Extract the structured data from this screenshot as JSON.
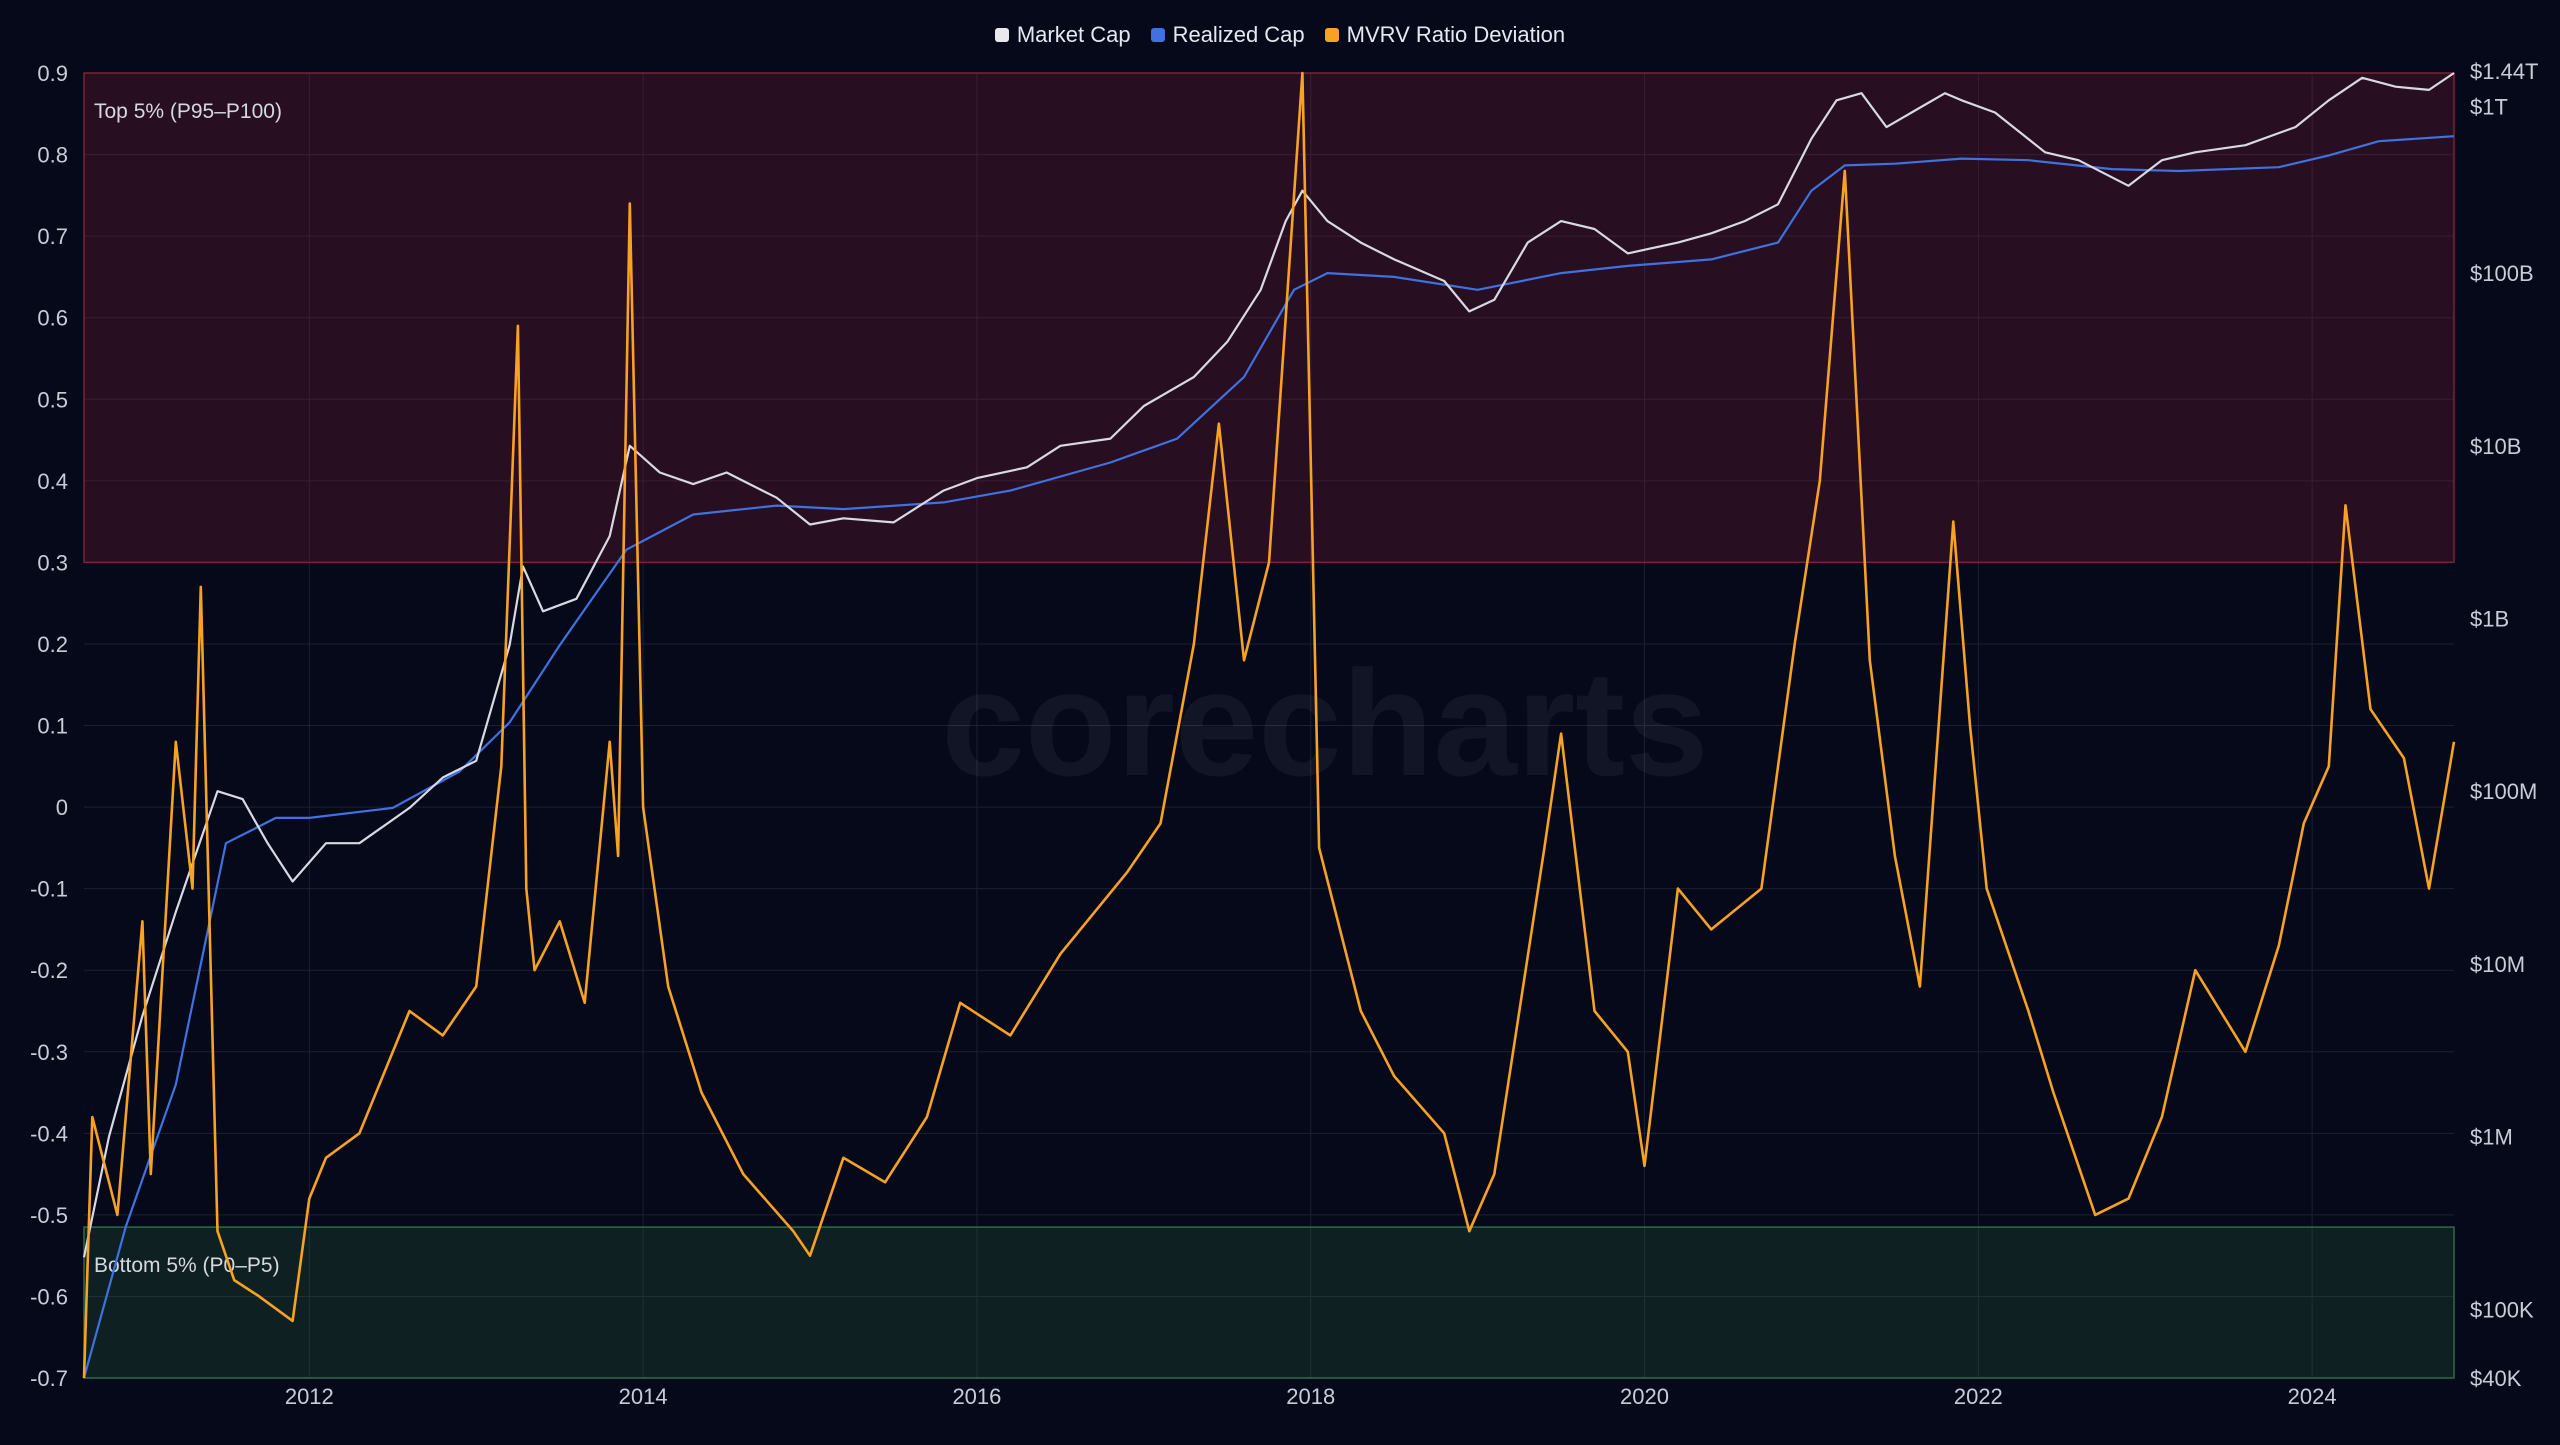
{
  "legend": [
    {
      "label": "Market Cap",
      "color": "#e8e8ee"
    },
    {
      "label": "Realized Cap",
      "color": "#3f72e0"
    },
    {
      "label": "MVRV Ratio Deviation",
      "color": "#f7a223"
    }
  ],
  "watermark": "corecharts",
  "bands": {
    "top_label": "Top 5% (P95–P100)",
    "bottom_label": "Bottom 5% (P0–P5)"
  },
  "chart_data": {
    "type": "line",
    "x_ticks": [
      "2012",
      "2014",
      "2016",
      "2018",
      "2020",
      "2022",
      "2024"
    ],
    "y_left_ticks": [
      "0.9",
      "0.8",
      "0.7",
      "0.6",
      "0.5",
      "0.4",
      "0.3",
      "0.2",
      "0.1",
      "0",
      "-0.1",
      "-0.2",
      "-0.3",
      "-0.4",
      "-0.5",
      "-0.6",
      "-0.7"
    ],
    "y_right_ticks": [
      "$1.44T",
      "$1T",
      "$100B",
      "$10B",
      "$1B",
      "$100M",
      "$10M",
      "$1M",
      "$100K",
      "$40K"
    ],
    "ylim_left": [
      -0.7,
      0.9
    ],
    "ylim_right_log": [
      40000,
      1440000000000
    ],
    "xlim": [
      2010.65,
      2024.85
    ],
    "top_band_ylim": [
      0.3,
      0.9
    ],
    "bottom_band_ylim": [
      -0.7,
      -0.515
    ],
    "series": [
      {
        "name": "Market Cap",
        "axis": "right-log",
        "x": [
          2010.65,
          2010.8,
          2011.0,
          2011.2,
          2011.45,
          2011.6,
          2011.75,
          2011.9,
          2012.1,
          2012.3,
          2012.6,
          2012.8,
          2013.0,
          2013.2,
          2013.28,
          2013.4,
          2013.6,
          2013.8,
          2013.92,
          2014.1,
          2014.3,
          2014.5,
          2014.8,
          2015.0,
          2015.2,
          2015.5,
          2015.8,
          2016.0,
          2016.3,
          2016.5,
          2016.8,
          2017.0,
          2017.3,
          2017.5,
          2017.7,
          2017.85,
          2017.95,
          2018.1,
          2018.3,
          2018.5,
          2018.8,
          2018.95,
          2019.1,
          2019.3,
          2019.5,
          2019.7,
          2019.9,
          2020.2,
          2020.4,
          2020.6,
          2020.8,
          2021.0,
          2021.15,
          2021.3,
          2021.45,
          2021.6,
          2021.8,
          2021.9,
          2022.1,
          2022.4,
          2022.6,
          2022.9,
          2023.1,
          2023.3,
          2023.6,
          2023.9,
          2024.1,
          2024.3,
          2024.5,
          2024.7,
          2024.85
        ],
        "values": [
          200000,
          1000000,
          5000000,
          20000000,
          100000000,
          90000000,
          50000000,
          30000000,
          50000000,
          50000000,
          80000000,
          120000000,
          150000000,
          700000000,
          2000000000,
          1100000000,
          1300000000,
          3000000000,
          10000000000,
          7000000000,
          6000000000,
          7000000000,
          5000000000,
          3500000000,
          3800000000,
          3600000000,
          5500000000,
          6500000000,
          7500000000,
          10000000000,
          11000000000,
          17000000000,
          25000000000,
          40000000000,
          80000000000,
          200000000000,
          300000000000,
          200000000000,
          150000000000,
          120000000000,
          90000000000,
          60000000000,
          70000000000,
          150000000000,
          200000000000,
          180000000000,
          130000000000,
          150000000000,
          170000000000,
          200000000000,
          250000000000,
          600000000000,
          1000000000000,
          1100000000000,
          700000000000,
          850000000000,
          1100000000000,
          1000000000000,
          850000000000,
          500000000000,
          450000000000,
          320000000000,
          450000000000,
          500000000000,
          550000000000,
          700000000000,
          1000000000000,
          1350000000000,
          1200000000000,
          1150000000000,
          1440000000000
        ]
      },
      {
        "name": "Realized Cap",
        "axis": "right-log",
        "x": [
          2010.65,
          2010.9,
          2011.2,
          2011.5,
          2011.8,
          2012.0,
          2012.5,
          2012.9,
          2013.2,
          2013.5,
          2013.9,
          2014.3,
          2014.8,
          2015.2,
          2015.8,
          2016.2,
          2016.8,
          2017.2,
          2017.6,
          2017.9,
          2018.1,
          2018.5,
          2019.0,
          2019.5,
          2019.9,
          2020.4,
          2020.8,
          2021.0,
          2021.2,
          2021.5,
          2021.9,
          2022.3,
          2022.8,
          2023.2,
          2023.8,
          2024.1,
          2024.4,
          2024.85
        ],
        "values": [
          40000,
          300000,
          2000000,
          50000000,
          70000000,
          70000000,
          80000000,
          130000000,
          250000000,
          700000000,
          2500000000,
          4000000000,
          4500000000,
          4300000000,
          4700000000,
          5500000000,
          8000000000,
          11000000000,
          25000000000,
          80000000000,
          100000000000,
          95000000000,
          80000000000,
          100000000000,
          110000000000,
          120000000000,
          150000000000,
          300000000000,
          420000000000,
          430000000000,
          460000000000,
          450000000000,
          400000000000,
          390000000000,
          410000000000,
          480000000000,
          580000000000,
          620000000000
        ]
      },
      {
        "name": "MVRV Ratio Deviation",
        "axis": "left",
        "x": [
          2010.65,
          2010.7,
          2010.85,
          2011.0,
          2011.05,
          2011.2,
          2011.3,
          2011.35,
          2011.45,
          2011.55,
          2011.7,
          2011.9,
          2012.0,
          2012.1,
          2012.3,
          2012.6,
          2012.8,
          2013.0,
          2013.15,
          2013.25,
          2013.3,
          2013.35,
          2013.5,
          2013.65,
          2013.8,
          2013.85,
          2013.92,
          2014.0,
          2014.15,
          2014.35,
          2014.6,
          2014.9,
          2015.0,
          2015.2,
          2015.45,
          2015.7,
          2015.9,
          2016.2,
          2016.5,
          2016.9,
          2017.1,
          2017.3,
          2017.45,
          2017.6,
          2017.75,
          2017.95,
          2018.05,
          2018.3,
          2018.5,
          2018.8,
          2018.95,
          2019.1,
          2019.4,
          2019.5,
          2019.7,
          2019.9,
          2020.0,
          2020.2,
          2020.4,
          2020.7,
          2020.9,
          2021.05,
          2021.2,
          2021.35,
          2021.5,
          2021.65,
          2021.85,
          2021.95,
          2022.05,
          2022.3,
          2022.45,
          2022.7,
          2022.9,
          2023.1,
          2023.3,
          2023.6,
          2023.8,
          2023.95,
          2024.1,
          2024.2,
          2024.35,
          2024.55,
          2024.7,
          2024.85
        ],
        "values": [
          -0.7,
          -0.38,
          -0.5,
          -0.14,
          -0.45,
          0.08,
          -0.1,
          0.27,
          -0.52,
          -0.58,
          -0.6,
          -0.63,
          -0.48,
          -0.43,
          -0.4,
          -0.25,
          -0.28,
          -0.22,
          0.05,
          0.59,
          -0.1,
          -0.2,
          -0.14,
          -0.24,
          0.08,
          -0.06,
          0.74,
          0.0,
          -0.22,
          -0.35,
          -0.45,
          -0.52,
          -0.55,
          -0.43,
          -0.46,
          -0.38,
          -0.24,
          -0.28,
          -0.18,
          -0.08,
          -0.02,
          0.2,
          0.47,
          0.18,
          0.3,
          0.9,
          -0.05,
          -0.25,
          -0.33,
          -0.4,
          -0.52,
          -0.45,
          -0.05,
          0.09,
          -0.25,
          -0.3,
          -0.44,
          -0.1,
          -0.15,
          -0.1,
          0.2,
          0.4,
          0.78,
          0.18,
          -0.06,
          -0.22,
          0.35,
          0.1,
          -0.1,
          -0.25,
          -0.35,
          -0.5,
          -0.48,
          -0.38,
          -0.2,
          -0.3,
          -0.17,
          -0.02,
          0.05,
          0.37,
          0.12,
          0.06,
          -0.1,
          0.08
        ]
      }
    ]
  }
}
